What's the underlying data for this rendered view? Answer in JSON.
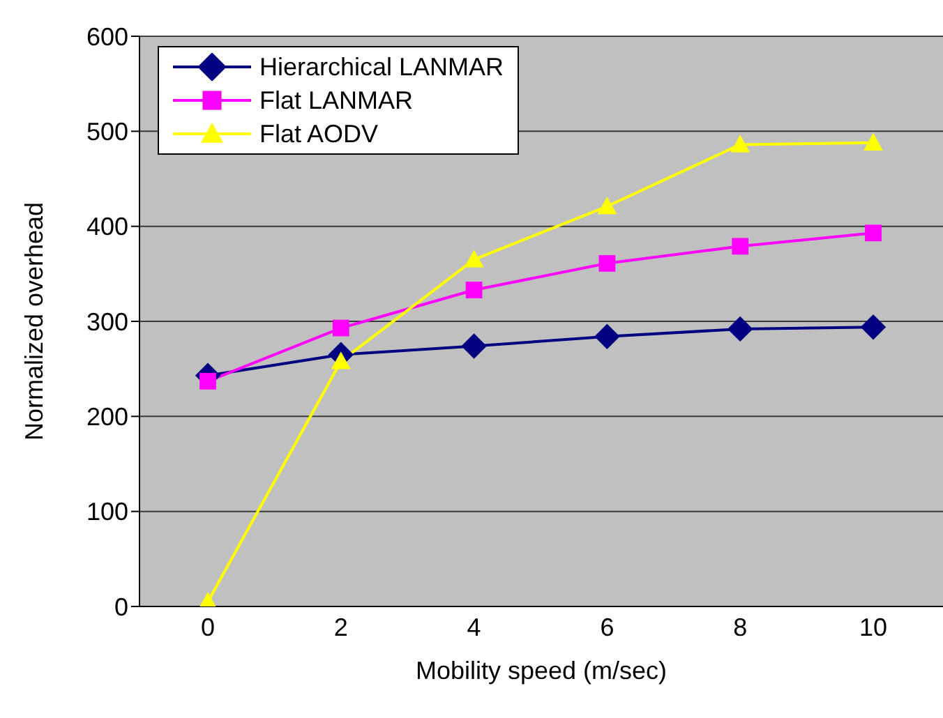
{
  "chart_data": {
    "type": "line",
    "xlabel": "Mobility speed (m/sec)",
    "ylabel": "Normalized overhead",
    "categories": [
      "0",
      "2",
      "4",
      "6",
      "8",
      "10"
    ],
    "series": [
      {
        "name": "Hierarchical LANMAR",
        "color": "#000080",
        "marker": "diamond",
        "values": [
          243,
          265,
          274,
          284,
          292,
          294
        ]
      },
      {
        "name": "Flat LANMAR",
        "color": "#ff00ff",
        "marker": "square",
        "values": [
          237,
          293,
          333,
          361,
          379,
          393
        ]
      },
      {
        "name": "Flat AODV",
        "color": "#ffff00",
        "marker": "triangle",
        "values": [
          5,
          258,
          365,
          421,
          486,
          488
        ]
      }
    ],
    "ylim": [
      0,
      600
    ],
    "yticks": [
      0,
      100,
      200,
      300,
      400,
      500,
      600
    ],
    "grid": "y",
    "legend": "top left",
    "line_style": "solid"
  }
}
